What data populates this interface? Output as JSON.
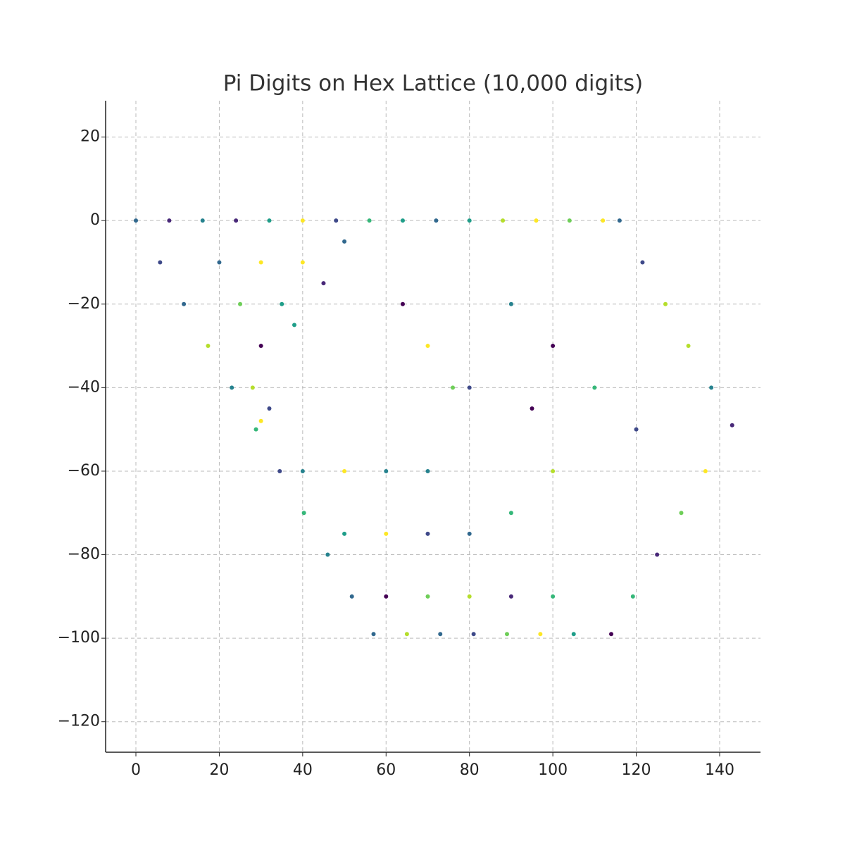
{
  "chart_data": {
    "type": "scatter",
    "title": "Pi Digits on Hex Lattice (10,000 digits)",
    "x": [
      0,
      8,
      16,
      24,
      32,
      40,
      48,
      56,
      64,
      72,
      80,
      88,
      96,
      104,
      112,
      116,
      5.8,
      11.5,
      17.3,
      23,
      28.8,
      34.5,
      40.3,
      46,
      51.8,
      57,
      65,
      73,
      81,
      89,
      97,
      105,
      114,
      121.5,
      127,
      132.5,
      138,
      143,
      136.6,
      130.8,
      125,
      119.2,
      30,
      20,
      30,
      40,
      50,
      25,
      35,
      45,
      30,
      38,
      28,
      32,
      64,
      70,
      76,
      40,
      50,
      60,
      70,
      50,
      60,
      70,
      80,
      60,
      70,
      80,
      90,
      100,
      90,
      100,
      110,
      120,
      100,
      90,
      80,
      95
    ],
    "y": [
      0,
      0,
      0,
      0,
      0,
      0,
      0,
      0,
      0,
      0,
      0,
      0,
      0,
      0,
      0,
      0,
      -10,
      -20,
      -30,
      -40,
      -50,
      -60,
      -70,
      -80,
      -90,
      -99,
      -99,
      -99,
      -99,
      -99,
      -99,
      -99,
      -99,
      -10,
      -20,
      -30,
      -40,
      -49,
      -60,
      -70,
      -80,
      -90,
      -48,
      -10,
      -10,
      -10,
      -5,
      -20,
      -20,
      -15,
      -30,
      -25,
      -40,
      -45,
      -20,
      -30,
      -40,
      -60,
      -60,
      -60,
      -60,
      -75,
      -75,
      -75,
      -75,
      -90,
      -90,
      -90,
      -90,
      -90,
      -20,
      -30,
      -40,
      -50,
      -60,
      -70,
      -40,
      -45
    ],
    "values": [
      3,
      1,
      4,
      1,
      5,
      9,
      2,
      6,
      5,
      3,
      5,
      8,
      9,
      7,
      9,
      3,
      2,
      3,
      8,
      4,
      6,
      2,
      6,
      4,
      3,
      3,
      8,
      3,
      2,
      7,
      9,
      5,
      0,
      2,
      8,
      8,
      4,
      1,
      9,
      7,
      1,
      6,
      9,
      3,
      9,
      9,
      3,
      7,
      5,
      1,
      0,
      5,
      8,
      2,
      0,
      9,
      7,
      4,
      9,
      4,
      4,
      5,
      9,
      2,
      3,
      0,
      7,
      8,
      1,
      6,
      4,
      0,
      6,
      2,
      8,
      6,
      2,
      0
    ],
    "colors": [
      "#440154",
      "#482878",
      "#3e4989",
      "#31688e",
      "#26828e",
      "#1f9e89",
      "#35b779",
      "#6ece58",
      "#b5de2b",
      "#fde725"
    ],
    "xlim": [
      -7.26,
      149.8
    ],
    "ylim": [
      -127.3,
      28.7
    ],
    "xticks": [
      0,
      20,
      40,
      60,
      80,
      100,
      120,
      140
    ],
    "yticks": [
      {
        "value": -120,
        "label": "−120"
      },
      {
        "value": -100,
        "label": "−100"
      },
      {
        "value": -80,
        "label": "−80"
      },
      {
        "value": -60,
        "label": "−60"
      },
      {
        "value": -40,
        "label": "−40"
      },
      {
        "value": -20,
        "label": "−20"
      },
      0,
      20
    ],
    "grid": true
  }
}
